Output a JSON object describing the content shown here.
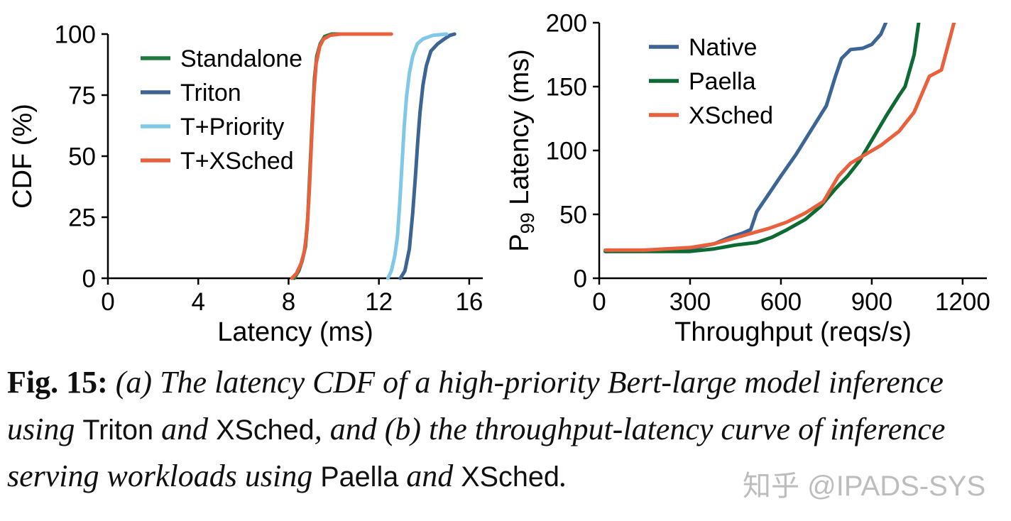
{
  "page": {
    "background": "#ffffff"
  },
  "watermark": {
    "text": "知乎 @IPADS-SYS",
    "color": "#b2b2b2"
  },
  "caption": {
    "segments": [
      {
        "text": "Fig. 15: ",
        "style": "bold-serif"
      },
      {
        "text": "(a) The latency CDF of a high-priority Bert-large model inference using ",
        "style": "italic-serif"
      },
      {
        "text": "Triton",
        "style": "sans"
      },
      {
        "text": " and ",
        "style": "italic-serif"
      },
      {
        "text": "XSched",
        "style": "sans"
      },
      {
        "text": ", and (b) the throughput-latency curve of inference serving workloads using ",
        "style": "italic-serif"
      },
      {
        "text": "Paella",
        "style": "sans"
      },
      {
        "text": " and ",
        "style": "italic-serif"
      },
      {
        "text": "XSched",
        "style": "sans"
      },
      {
        "text": ".",
        "style": "italic-serif"
      }
    ]
  },
  "chart_data": [
    {
      "id": "cdf-chart",
      "type": "line",
      "title": "",
      "xlabel": "Latency (ms)",
      "ylabel": "CDF (%)",
      "xlim": [
        0,
        16.6
      ],
      "ylim": [
        0,
        100
      ],
      "xticks": [
        0,
        4,
        8,
        12,
        16
      ],
      "yticks": [
        0,
        25,
        50,
        75,
        100
      ],
      "grid": false,
      "legend_position": "top-left",
      "series": [
        {
          "name": "Standalone",
          "color": "#1e7a3d",
          "points": [
            [
              8.25,
              0
            ],
            [
              8.45,
              3
            ],
            [
              8.6,
              7
            ],
            [
              8.75,
              13
            ],
            [
              8.85,
              25
            ],
            [
              8.95,
              45
            ],
            [
              9.05,
              65
            ],
            [
              9.15,
              82
            ],
            [
              9.25,
              91
            ],
            [
              9.4,
              96
            ],
            [
              9.6,
              99
            ],
            [
              9.9,
              100
            ],
            [
              12.4,
              100
            ]
          ]
        },
        {
          "name": "Triton",
          "color": "#3c6595",
          "points": [
            [
              12.95,
              0
            ],
            [
              13.15,
              3
            ],
            [
              13.35,
              12
            ],
            [
              13.5,
              27
            ],
            [
              13.62,
              42
            ],
            [
              13.72,
              56
            ],
            [
              13.82,
              68
            ],
            [
              13.95,
              79
            ],
            [
              14.1,
              87
            ],
            [
              14.3,
              93
            ],
            [
              14.6,
              96
            ],
            [
              14.9,
              98
            ],
            [
              15.15,
              99.5
            ],
            [
              15.35,
              100
            ]
          ]
        },
        {
          "name": "T+Priority",
          "color": "#7fc8e8",
          "points": [
            [
              12.4,
              0
            ],
            [
              12.55,
              3
            ],
            [
              12.7,
              9
            ],
            [
              12.82,
              17
            ],
            [
              12.92,
              30
            ],
            [
              13.02,
              46
            ],
            [
              13.12,
              62
            ],
            [
              13.22,
              74
            ],
            [
              13.35,
              84
            ],
            [
              13.5,
              91
            ],
            [
              13.7,
              96
            ],
            [
              13.95,
              98
            ],
            [
              14.4,
              99.5
            ],
            [
              15.0,
              100
            ]
          ]
        },
        {
          "name": "T+XSched",
          "color": "#e8613c",
          "points": [
            [
              8.15,
              0
            ],
            [
              8.35,
              2
            ],
            [
              8.55,
              6
            ],
            [
              8.7,
              11
            ],
            [
              8.82,
              20
            ],
            [
              8.92,
              36
            ],
            [
              9.02,
              57
            ],
            [
              9.12,
              76
            ],
            [
              9.22,
              88
            ],
            [
              9.38,
              95
            ],
            [
              9.55,
              98
            ],
            [
              9.85,
              99.5
            ],
            [
              10.3,
              100
            ],
            [
              12.55,
              100
            ]
          ]
        }
      ]
    },
    {
      "id": "tput-chart",
      "type": "line",
      "title": "",
      "xlabel": "Throughput (reqs/s)",
      "ylabel": "P99 Latency (ms)",
      "ylabel_rich": {
        "prefix": "P",
        "sub": "99",
        "suffix": " Latency (ms)"
      },
      "xlim": [
        0,
        1280
      ],
      "ylim": [
        0,
        200
      ],
      "xticks": [
        0,
        300,
        600,
        900,
        1200
      ],
      "yticks": [
        0,
        50,
        100,
        150,
        200
      ],
      "grid": false,
      "legend_position": "top-left",
      "series": [
        {
          "name": "Native",
          "color": "#3c6595",
          "points": [
            [
              20,
              21
            ],
            [
              150,
              22
            ],
            [
              300,
              23
            ],
            [
              380,
              27
            ],
            [
              430,
              32
            ],
            [
              470,
              35
            ],
            [
              500,
              38
            ],
            [
              520,
              52
            ],
            [
              560,
              66
            ],
            [
              600,
              80
            ],
            [
              650,
              97
            ],
            [
              700,
              116
            ],
            [
              750,
              135
            ],
            [
              780,
              158
            ],
            [
              800,
              172
            ],
            [
              830,
              179
            ],
            [
              870,
              180
            ],
            [
              900,
              183
            ],
            [
              930,
              191
            ],
            [
              968,
              212
            ]
          ]
        },
        {
          "name": "Paella",
          "color": "#0c6b32",
          "points": [
            [
              20,
              21
            ],
            [
              150,
              21
            ],
            [
              300,
              21
            ],
            [
              380,
              23
            ],
            [
              450,
              26
            ],
            [
              520,
              28
            ],
            [
              570,
              32
            ],
            [
              620,
              38
            ],
            [
              680,
              46
            ],
            [
              730,
              56
            ],
            [
              780,
              70
            ],
            [
              820,
              80
            ],
            [
              860,
              92
            ],
            [
              900,
              108
            ],
            [
              950,
              128
            ],
            [
              990,
              143
            ],
            [
              1010,
              150
            ],
            [
              1040,
              175
            ],
            [
              1062,
              212
            ]
          ]
        },
        {
          "name": "XSched",
          "color": "#e8613c",
          "points": [
            [
              20,
              22
            ],
            [
              150,
              22
            ],
            [
              300,
              24
            ],
            [
              380,
              27
            ],
            [
              440,
              31
            ],
            [
              500,
              35
            ],
            [
              560,
              39
            ],
            [
              620,
              44
            ],
            [
              680,
              51
            ],
            [
              740,
              60
            ],
            [
              790,
              80
            ],
            [
              830,
              90
            ],
            [
              880,
              97
            ],
            [
              930,
              104
            ],
            [
              990,
              115
            ],
            [
              1040,
              130
            ],
            [
              1090,
              158
            ],
            [
              1130,
              163
            ],
            [
              1185,
              212
            ]
          ]
        }
      ]
    }
  ]
}
